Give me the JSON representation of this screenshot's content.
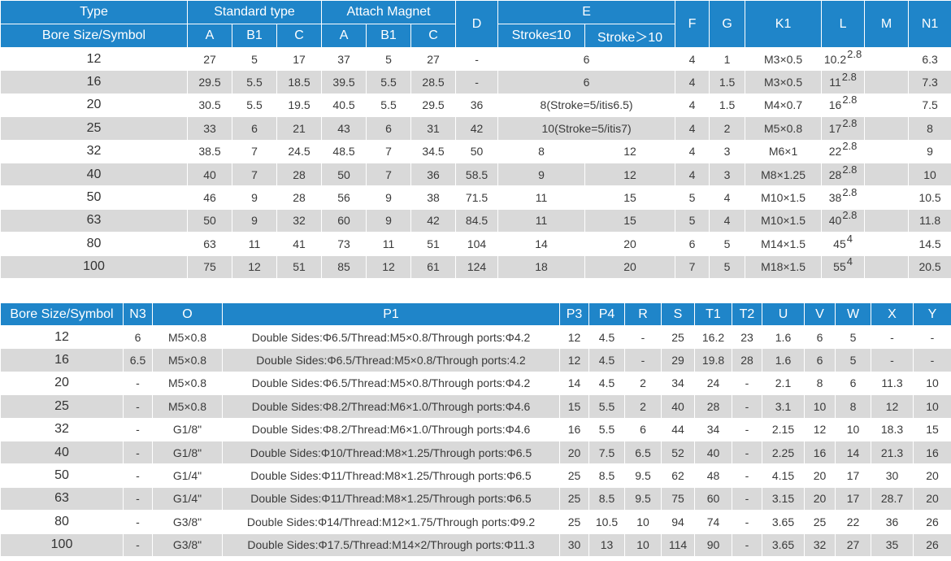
{
  "table1": {
    "header": {
      "type": "Type",
      "bore": "Bore Size/Symbol",
      "standard": "Standard type",
      "attach": "Attach Magnet",
      "a": "A",
      "b1": "B1",
      "c": "C",
      "a2": "A",
      "b12": "B1",
      "c2": "C",
      "d": "D",
      "e": "E",
      "e_le": "Stroke≤10",
      "e_gt": "Stroke＞10",
      "f": "F",
      "g": "G",
      "k1": "K1",
      "l": "L",
      "m": "M",
      "n1": "N1"
    },
    "rows": [
      {
        "bore": "12",
        "a": "27",
        "b1": "5",
        "c": "17",
        "ma": "37",
        "mb1": "5",
        "mc": "27",
        "d": "-",
        "e": "6",
        "f": "4",
        "g": "1",
        "k1": "M3×0.5",
        "l": "10.2",
        "lsup": "2.8",
        "m": "",
        "n1": "6.3"
      },
      {
        "bore": "16",
        "a": "29.5",
        "b1": "5.5",
        "c": "18.5",
        "ma": "39.5",
        "mb1": "5.5",
        "mc": "28.5",
        "d": "-",
        "e": "6",
        "f": "4",
        "g": "1.5",
        "k1": "M3×0.5",
        "l": "11",
        "lsup": "2.8",
        "m": "",
        "n1": "7.3"
      },
      {
        "bore": "20",
        "a": "30.5",
        "b1": "5.5",
        "c": "19.5",
        "ma": "40.5",
        "mb1": "5.5",
        "mc": "29.5",
        "d": "36",
        "e": "8(Stroke=5/itis6.5)",
        "f": "4",
        "g": "1.5",
        "k1": "M4×0.7",
        "l": "16",
        "lsup": "2.8",
        "m": "",
        "n1": "7.5"
      },
      {
        "bore": "25",
        "a": "33",
        "b1": "6",
        "c": "21",
        "ma": "43",
        "mb1": "6",
        "mc": "31",
        "d": "42",
        "e": "10(Stroke=5/itis7)",
        "f": "4",
        "g": "2",
        "k1": "M5×0.8",
        "l": "17",
        "lsup": "2.8",
        "m": "",
        "n1": "8"
      },
      {
        "bore": "32",
        "a": "38.5",
        "b1": "7",
        "c": "24.5",
        "ma": "48.5",
        "mb1": "7",
        "mc": "34.5",
        "d": "50",
        "e1": "8",
        "e2": "12",
        "f": "4",
        "g": "3",
        "k1": "M6×1",
        "l": "22",
        "lsup": "2.8",
        "m": "",
        "n1": "9"
      },
      {
        "bore": "40",
        "a": "40",
        "b1": "7",
        "c": "28",
        "ma": "50",
        "mb1": "7",
        "mc": "36",
        "d": "58.5",
        "e1": "9",
        "e2": "12",
        "f": "4",
        "g": "3",
        "k1": "M8×1.25",
        "l": "28",
        "lsup": "2.8",
        "m": "",
        "n1": "10"
      },
      {
        "bore": "50",
        "a": "46",
        "b1": "9",
        "c": "28",
        "ma": "56",
        "mb1": "9",
        "mc": "38",
        "d": "71.5",
        "e1": "11",
        "e2": "15",
        "f": "5",
        "g": "4",
        "k1": "M10×1.5",
        "l": "38",
        "lsup": "2.8",
        "m": "",
        "n1": "10.5"
      },
      {
        "bore": "63",
        "a": "50",
        "b1": "9",
        "c": "32",
        "ma": "60",
        "mb1": "9",
        "mc": "42",
        "d": "84.5",
        "e1": "11",
        "e2": "15",
        "f": "5",
        "g": "4",
        "k1": "M10×1.5",
        "l": "40",
        "lsup": "2.8",
        "m": "",
        "n1": "11.8"
      },
      {
        "bore": "80",
        "a": "63",
        "b1": "11",
        "c": "41",
        "ma": "73",
        "mb1": "11",
        "mc": "51",
        "d": "104",
        "e1": "14",
        "e2": "20",
        "f": "6",
        "g": "5",
        "k1": "M14×1.5",
        "l": "45",
        "lsup": "4",
        "m": "",
        "n1": "14.5"
      },
      {
        "bore": "100",
        "a": "75",
        "b1": "12",
        "c": "51",
        "ma": "85",
        "mb1": "12",
        "mc": "61",
        "d": "124",
        "e1": "18",
        "e2": "20",
        "f": "7",
        "g": "5",
        "k1": "M18×1.5",
        "l": "55",
        "lsup": "4",
        "m": "",
        "n1": "20.5"
      }
    ]
  },
  "table2": {
    "header": {
      "bore": "Bore Size/Symbol",
      "n3": "N3",
      "o": "O",
      "p1": "P1",
      "p3": "P3",
      "p4": "P4",
      "r": "R",
      "s": "S",
      "t1": "T1",
      "t2": "T2",
      "u": "U",
      "v": "V",
      "w": "W",
      "x": "X",
      "y": "Y"
    },
    "rows": [
      {
        "bore": "12",
        "n3": "6",
        "o": "M5×0.8",
        "p1": "Double Sides:Φ6.5/Thread:M5×0.8/Through ports:Φ4.2",
        "p3": "12",
        "p4": "4.5",
        "r": "-",
        "s": "25",
        "t1": "16.2",
        "t2": "23",
        "u": "1.6",
        "v": "6",
        "w": "5",
        "x": "-",
        "y": "-"
      },
      {
        "bore": "16",
        "n3": "6.5",
        "o": "M5×0.8",
        "p1": "Double Sides:Φ6.5/Thread:M5×0.8/Through ports:4.2",
        "p3": "12",
        "p4": "4.5",
        "r": "-",
        "s": "29",
        "t1": "19.8",
        "t2": "28",
        "u": "1.6",
        "v": "6",
        "w": "5",
        "x": "-",
        "y": "-"
      },
      {
        "bore": "20",
        "n3": "-",
        "o": "M5×0.8",
        "p1": "Double Sides:Φ6.5/Thread:M5×0.8/Through ports:Φ4.2",
        "p3": "14",
        "p4": "4.5",
        "r": "2",
        "s": "34",
        "t1": "24",
        "t2": "-",
        "u": "2.1",
        "v": "8",
        "w": "6",
        "x": "11.3",
        "y": "10"
      },
      {
        "bore": "25",
        "n3": "-",
        "o": "M5×0.8",
        "p1": "Double Sides:Φ8.2/Thread:M6×1.0/Through ports:Φ4.6",
        "p3": "15",
        "p4": "5.5",
        "r": "2",
        "s": "40",
        "t1": "28",
        "t2": "-",
        "u": "3.1",
        "v": "10",
        "w": "8",
        "x": "12",
        "y": "10"
      },
      {
        "bore": "32",
        "n3": "-",
        "o": "G1/8\"",
        "p1": "Double Sides:Φ8.2/Thread:M6×1.0/Through ports:Φ4.6",
        "p3": "16",
        "p4": "5.5",
        "r": "6",
        "s": "44",
        "t1": "34",
        "t2": "-",
        "u": "2.15",
        "v": "12",
        "w": "10",
        "x": "18.3",
        "y": "15"
      },
      {
        "bore": "40",
        "n3": "-",
        "o": "G1/8\"",
        "p1": "Double Sides:Φ10/Thread:M8×1.25/Through ports:Φ6.5",
        "p3": "20",
        "p4": "7.5",
        "r": "6.5",
        "s": "52",
        "t1": "40",
        "t2": "-",
        "u": "2.25",
        "v": "16",
        "w": "14",
        "x": "21.3",
        "y": "16"
      },
      {
        "bore": "50",
        "n3": "-",
        "o": "G1/4\"",
        "p1": "Double Sides:Φ11/Thread:M8×1.25/Through ports:Φ6.5",
        "p3": "25",
        "p4": "8.5",
        "r": "9.5",
        "s": "62",
        "t1": "48",
        "t2": "-",
        "u": "4.15",
        "v": "20",
        "w": "17",
        "x": "30",
        "y": "20"
      },
      {
        "bore": "63",
        "n3": "-",
        "o": "G1/4\"",
        "p1": "Double Sides:Φ11/Thread:M8×1.25/Through ports:Φ6.5",
        "p3": "25",
        "p4": "8.5",
        "r": "9.5",
        "s": "75",
        "t1": "60",
        "t2": "-",
        "u": "3.15",
        "v": "20",
        "w": "17",
        "x": "28.7",
        "y": "20"
      },
      {
        "bore": "80",
        "n3": "-",
        "o": "G3/8\"",
        "p1": "Double Sides:Φ14/Thread:M12×1.75/Through ports:Φ9.2",
        "p3": "25",
        "p4": "10.5",
        "r": "10",
        "s": "94",
        "t1": "74",
        "t2": "-",
        "u": "3.65",
        "v": "25",
        "w": "22",
        "x": "36",
        "y": "26"
      },
      {
        "bore": "100",
        "n3": "-",
        "o": "G3/8\"",
        "p1": "Double Sides:Φ17.5/Thread:M14×2/Through ports:Φ11.3",
        "p3": "30",
        "p4": "13",
        "r": "10",
        "s": "114",
        "t1": "90",
        "t2": "-",
        "u": "3.65",
        "v": "32",
        "w": "27",
        "x": "35",
        "y": "26"
      }
    ]
  },
  "colors": {
    "header_bg": "#1f85c9",
    "stripe_bg": "#d9d9d9"
  }
}
